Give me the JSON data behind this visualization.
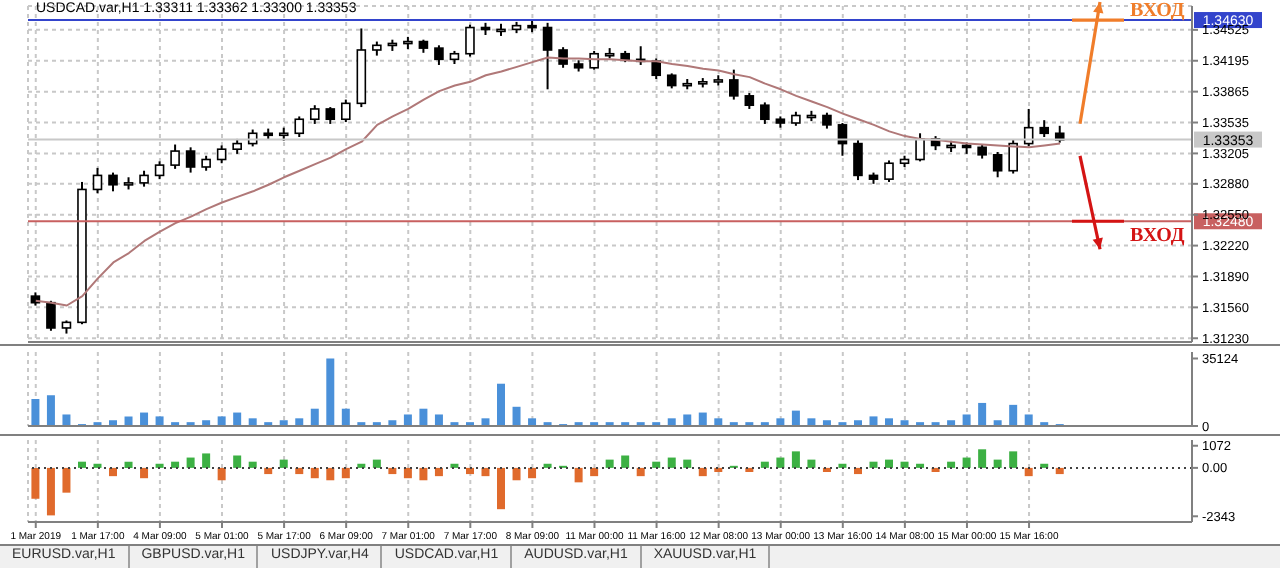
{
  "chart_data": [
    {
      "type": "candlestick",
      "title": "USDCAD.var,H1  1.33311 1.33362 1.33300 1.33353",
      "categories": [
        null,
        null,
        null,
        null,
        null,
        null,
        null,
        null,
        null,
        null,
        null,
        null,
        null,
        null,
        null,
        null,
        null,
        null,
        null,
        null,
        null,
        null,
        null,
        null,
        null,
        null,
        null,
        null,
        null,
        null,
        null,
        null,
        null,
        null,
        null,
        null,
        null,
        null,
        null,
        null,
        null,
        null,
        null,
        null,
        null,
        null,
        null,
        null,
        null,
        null,
        null,
        null,
        null,
        null,
        null,
        null,
        null,
        null,
        null,
        null,
        null,
        null,
        null,
        null,
        null,
        null,
        null,
        null,
        null,
        null,
        null,
        null,
        null,
        null,
        null
      ],
      "ohlc": [
        [
          1.3168,
          1.3172,
          1.3158,
          1.3161
        ],
        [
          1.3161,
          1.3163,
          1.3131,
          1.3134
        ],
        [
          1.3134,
          1.3142,
          1.3128,
          1.314
        ],
        [
          1.314,
          1.329,
          1.3138,
          1.3282
        ],
        [
          1.3282,
          1.3305,
          1.3278,
          1.3297
        ],
        [
          1.3297,
          1.33,
          1.328,
          1.3287
        ],
        [
          1.3287,
          1.3295,
          1.3282,
          1.3289
        ],
        [
          1.3289,
          1.3302,
          1.3285,
          1.3297
        ],
        [
          1.3297,
          1.3312,
          1.3293,
          1.3308
        ],
        [
          1.3308,
          1.333,
          1.3304,
          1.3323
        ],
        [
          1.3323,
          1.3327,
          1.33,
          1.3306
        ],
        [
          1.3306,
          1.3318,
          1.3302,
          1.3314
        ],
        [
          1.3314,
          1.3329,
          1.331,
          1.3325
        ],
        [
          1.3325,
          1.3336,
          1.332,
          1.3331
        ],
        [
          1.3331,
          1.3346,
          1.3328,
          1.3342
        ],
        [
          1.3342,
          1.3347,
          1.3335,
          1.334
        ],
        [
          1.334,
          1.3348,
          1.3334,
          1.3342
        ],
        [
          1.3342,
          1.336,
          1.3338,
          1.3357
        ],
        [
          1.3357,
          1.3372,
          1.3352,
          1.3368
        ],
        [
          1.3368,
          1.337,
          1.3352,
          1.3357
        ],
        [
          1.3357,
          1.3378,
          1.3354,
          1.3374
        ],
        [
          1.3374,
          1.3454,
          1.337,
          1.3431
        ],
        [
          1.3431,
          1.344,
          1.3425,
          1.3436
        ],
        [
          1.3436,
          1.3442,
          1.343,
          1.3438
        ],
        [
          1.3438,
          1.3445,
          1.3432,
          1.344
        ],
        [
          1.344,
          1.3442,
          1.3428,
          1.3433
        ],
        [
          1.3433,
          1.3436,
          1.3415,
          1.3421
        ],
        [
          1.3421,
          1.343,
          1.3416,
          1.3427
        ],
        [
          1.3427,
          1.3458,
          1.3424,
          1.3455
        ],
        [
          1.3455,
          1.346,
          1.3447,
          1.3453
        ],
        [
          1.3453,
          1.3459,
          1.3446,
          1.3453
        ],
        [
          1.3453,
          1.3461,
          1.3449,
          1.3457
        ],
        [
          1.3457,
          1.3462,
          1.345,
          1.3455
        ],
        [
          1.3455,
          1.346,
          1.3389,
          1.3431
        ],
        [
          1.3431,
          1.3434,
          1.3412,
          1.3416
        ],
        [
          1.3416,
          1.342,
          1.3408,
          1.3412
        ],
        [
          1.3412,
          1.343,
          1.341,
          1.3427
        ],
        [
          1.3427,
          1.3433,
          1.3422,
          1.3427
        ],
        [
          1.3427,
          1.343,
          1.3418,
          1.3421
        ],
        [
          1.3421,
          1.3435,
          1.3415,
          1.3419
        ],
        [
          1.3419,
          1.3422,
          1.34,
          1.3404
        ],
        [
          1.3404,
          1.3406,
          1.339,
          1.3393
        ],
        [
          1.3393,
          1.34,
          1.3389,
          1.3395
        ],
        [
          1.3395,
          1.3401,
          1.3391,
          1.3397
        ],
        [
          1.3397,
          1.3404,
          1.3393,
          1.3399
        ],
        [
          1.3399,
          1.341,
          1.3378,
          1.3382
        ],
        [
          1.3382,
          1.3385,
          1.3368,
          1.3372
        ],
        [
          1.3372,
          1.3375,
          1.3352,
          1.3357
        ],
        [
          1.3357,
          1.336,
          1.3348,
          1.3353
        ],
        [
          1.3353,
          1.3365,
          1.335,
          1.3361
        ],
        [
          1.3361,
          1.3366,
          1.3355,
          1.3361
        ],
        [
          1.3361,
          1.3364,
          1.3347,
          1.3351
        ],
        [
          1.3351,
          1.3353,
          1.3318,
          1.3331
        ],
        [
          1.3331,
          1.3335,
          1.3292,
          1.3297
        ],
        [
          1.3297,
          1.33,
          1.3288,
          1.3293
        ],
        [
          1.3293,
          1.3313,
          1.329,
          1.331
        ],
        [
          1.331,
          1.3318,
          1.3306,
          1.3314
        ],
        [
          1.3314,
          1.3342,
          1.3312,
          1.3336
        ],
        [
          1.3336,
          1.3339,
          1.3324,
          1.3329
        ],
        [
          1.3329,
          1.3334,
          1.3322,
          1.3329
        ],
        [
          1.3329,
          1.3332,
          1.332,
          1.3327
        ],
        [
          1.3327,
          1.333,
          1.3315,
          1.3319
        ],
        [
          1.3319,
          1.3322,
          1.3295,
          1.3302
        ],
        [
          1.3302,
          1.3335,
          1.3299,
          1.3331
        ],
        [
          1.3331,
          1.3368,
          1.3328,
          1.3348
        ],
        [
          1.3348,
          1.3356,
          1.3338,
          1.3342
        ],
        [
          1.3342,
          1.335,
          1.3332,
          1.3335
        ],
        null,
        null,
        null,
        null,
        null,
        null,
        null,
        null
      ],
      "series": [
        {
          "type": "line",
          "color": "#b07878",
          "values": [
            1.3163,
            1.3161,
            1.3158,
            1.3168,
            1.3187,
            1.3204,
            1.3214,
            1.3227,
            1.3237,
            1.3246,
            1.3253,
            1.3261,
            1.3268,
            1.3274,
            1.328,
            1.3287,
            1.3295,
            1.3302,
            1.3309,
            1.3316,
            1.3325,
            1.3333,
            1.3351,
            1.336,
            1.3368,
            1.3378,
            1.3387,
            1.3393,
            1.3397,
            1.3404,
            1.3408,
            1.3413,
            1.3418,
            1.3423,
            1.3422,
            1.3422,
            1.3421,
            1.3421,
            1.342,
            1.3419,
            1.3419,
            1.3416,
            1.3414,
            1.3411,
            1.3409,
            1.3405,
            1.3402,
            1.3395,
            1.3389,
            1.3382,
            1.3376,
            1.337,
            1.3363,
            1.3357,
            1.3351,
            1.3344,
            1.3339,
            1.3336,
            1.3335,
            1.3333,
            1.3331,
            1.333,
            1.3329,
            1.3328,
            1.3327,
            1.3329,
            1.3331,
            null,
            null,
            null,
            null,
            null,
            null,
            null,
            null
          ]
        }
      ],
      "ylim": [
        1.3119,
        1.3478
      ],
      "yticks": [
        1.34525,
        1.34195,
        1.33865,
        1.33535,
        1.33205,
        {
          "value": 1.3288,
          "label": "1.32880"
        },
        {
          "value": 1.3255,
          "label": "1.32550"
        },
        {
          "value": 1.3222,
          "label": "1.32220"
        },
        {
          "value": 1.3189,
          "label": "1.31890"
        },
        {
          "value": 1.3156,
          "label": "1.31560"
        },
        {
          "value": 1.3123,
          "label": "1.31230"
        }
      ],
      "ref_lines": [
        {
          "axis": "y",
          "value": 1.3463,
          "label": "1.34630",
          "color": "#3344cc"
        },
        {
          "axis": "y",
          "value": 1.33353,
          "label": "1.33353",
          "color": "#c8c8c8"
        },
        {
          "axis": "y",
          "value": 1.3248,
          "label": "1.32480",
          "color": "#c86060"
        }
      ],
      "annotations": [
        {
          "text": "ВХОД",
          "y": 1.3463
        },
        {
          "text": "ВХОД",
          "y": 1.3248
        }
      ],
      "grid": true,
      "tick_labels": "y"
    },
    {
      "type": "bar",
      "categories": [
        null,
        null,
        null,
        null,
        null,
        null,
        null,
        null,
        null,
        null,
        null,
        null,
        null,
        null,
        null,
        null,
        null,
        null,
        null,
        null,
        null,
        null,
        null,
        null,
        null,
        null,
        null,
        null,
        null,
        null,
        null,
        null,
        null,
        null,
        null,
        null,
        null,
        null,
        null,
        null,
        null,
        null,
        null,
        null,
        null,
        null,
        null,
        null,
        null,
        null,
        null,
        null,
        null,
        null,
        null,
        null,
        null,
        null,
        null,
        null,
        null,
        null,
        null,
        null,
        null,
        null,
        null,
        null,
        null,
        null,
        null,
        null,
        null,
        null,
        null
      ],
      "values": [
        14000,
        16000,
        6000,
        1000,
        2000,
        3000,
        5000,
        7000,
        5000,
        2000,
        2000,
        3000,
        5000,
        7000,
        4000,
        2000,
        3000,
        4000,
        9000,
        35124,
        9000,
        2000,
        2000,
        3000,
        6000,
        9000,
        6000,
        2000,
        2000,
        4000,
        22000,
        10000,
        4000,
        2000,
        1000,
        2000,
        2000,
        2000,
        2000,
        2000,
        2000,
        4000,
        6000,
        7000,
        4000,
        2000,
        2000,
        2000,
        4000,
        8000,
        4000,
        3000,
        2000,
        3000,
        5000,
        4000,
        3000,
        2000,
        2000,
        3000,
        6000,
        12000,
        3000,
        11000,
        6000,
        2000,
        1000,
        null,
        null,
        null,
        null,
        null,
        null,
        null,
        null
      ],
      "color": "#4a90d9",
      "ylim": [
        0,
        38500
      ],
      "yticks": [
        0,
        35124
      ],
      "grid": "x",
      "tick_labels": "y"
    },
    {
      "type": "bar",
      "categories": [
        "1 Mar 2019",
        null,
        null,
        null,
        "1 Mar 17:00",
        null,
        null,
        null,
        "4 Mar 09:00",
        null,
        null,
        null,
        "5 Mar 01:00",
        null,
        null,
        null,
        "5 Mar 17:00",
        null,
        null,
        null,
        "6 Mar 09:00",
        null,
        null,
        null,
        "7 Mar 01:00",
        null,
        null,
        null,
        "7 Mar 17:00",
        null,
        null,
        null,
        "8 Mar 09:00",
        null,
        null,
        null,
        "11 Mar 00:00",
        null,
        null,
        null,
        "11 Mar 16:00",
        null,
        null,
        null,
        "12 Mar 08:00",
        null,
        null,
        null,
        "13 Mar 00:00",
        null,
        null,
        null,
        "13 Mar 16:00",
        null,
        null,
        null,
        "14 Mar 08:00",
        null,
        null,
        null,
        "15 Mar 00:00",
        null,
        null,
        null,
        "15 Mar 16:00",
        null,
        null,
        null,
        null,
        null,
        null,
        null,
        null,
        null,
        null
      ],
      "values": [
        -1500,
        -2300,
        -1200,
        300,
        200,
        -400,
        300,
        -500,
        200,
        300,
        500,
        700,
        -600,
        600,
        300,
        -300,
        400,
        -300,
        -500,
        -600,
        -500,
        200,
        400,
        -300,
        -500,
        -600,
        -400,
        200,
        -300,
        -400,
        -2000,
        -600,
        -500,
        200,
        100,
        -700,
        -400,
        400,
        600,
        -400,
        300,
        500,
        400,
        -400,
        -200,
        100,
        -200,
        300,
        500,
        800,
        400,
        -200,
        200,
        -300,
        300,
        400,
        300,
        200,
        -200,
        300,
        500,
        900,
        400,
        800,
        -400,
        200,
        -300,
        null,
        null,
        null,
        null,
        null,
        null,
        null,
        null
      ],
      "colors": [
        "#e06a2c",
        "#e06a2c",
        "#e06a2c",
        "#3cb043",
        "#3cb043",
        "#e06a2c",
        "#3cb043",
        "#e06a2c",
        "#3cb043",
        "#3cb043",
        "#3cb043",
        "#3cb043",
        "#e06a2c",
        "#3cb043",
        "#3cb043",
        "#e06a2c",
        "#3cb043",
        "#e06a2c",
        "#e06a2c",
        "#e06a2c",
        "#e06a2c",
        "#3cb043",
        "#3cb043",
        "#e06a2c",
        "#e06a2c",
        "#e06a2c",
        "#e06a2c",
        "#3cb043",
        "#e06a2c",
        "#e06a2c",
        "#e06a2c",
        "#e06a2c",
        "#e06a2c",
        "#3cb043",
        "#3cb043",
        "#e06a2c",
        "#e06a2c",
        "#3cb043",
        "#3cb043",
        "#e06a2c",
        "#3cb043",
        "#3cb043",
        "#3cb043",
        "#e06a2c",
        "#e06a2c",
        "#3cb043",
        "#e06a2c",
        "#3cb043",
        "#3cb043",
        "#3cb043",
        "#3cb043",
        "#e06a2c",
        "#3cb043",
        "#e06a2c",
        "#3cb043",
        "#3cb043",
        "#3cb043",
        "#3cb043",
        "#e06a2c",
        "#3cb043",
        "#3cb043",
        "#3cb043",
        "#3cb043",
        "#3cb043",
        "#e06a2c",
        "#3cb043",
        "#e06a2c",
        null,
        null,
        null,
        null,
        null,
        null,
        null,
        null
      ],
      "ylim": [
        -2620,
        1350
      ],
      "yticks": [
        1072,
        {
          "value": 0,
          "label": "0.00"
        },
        -2343
      ],
      "ref_lines": [
        {
          "axis": "y",
          "value": 0,
          "color": "#404040",
          "line_style": "dotted"
        }
      ],
      "grid": "x"
    },
    {
      "type": "other",
      "annotations": [
        "EURUSD.var,H1",
        "GBPUSD.var,H1",
        "USDJPY.var,H4",
        "USDCAD.var,H1",
        "AUDUSD.var,H1",
        "XAUUSD.var,H1"
      ]
    }
  ]
}
